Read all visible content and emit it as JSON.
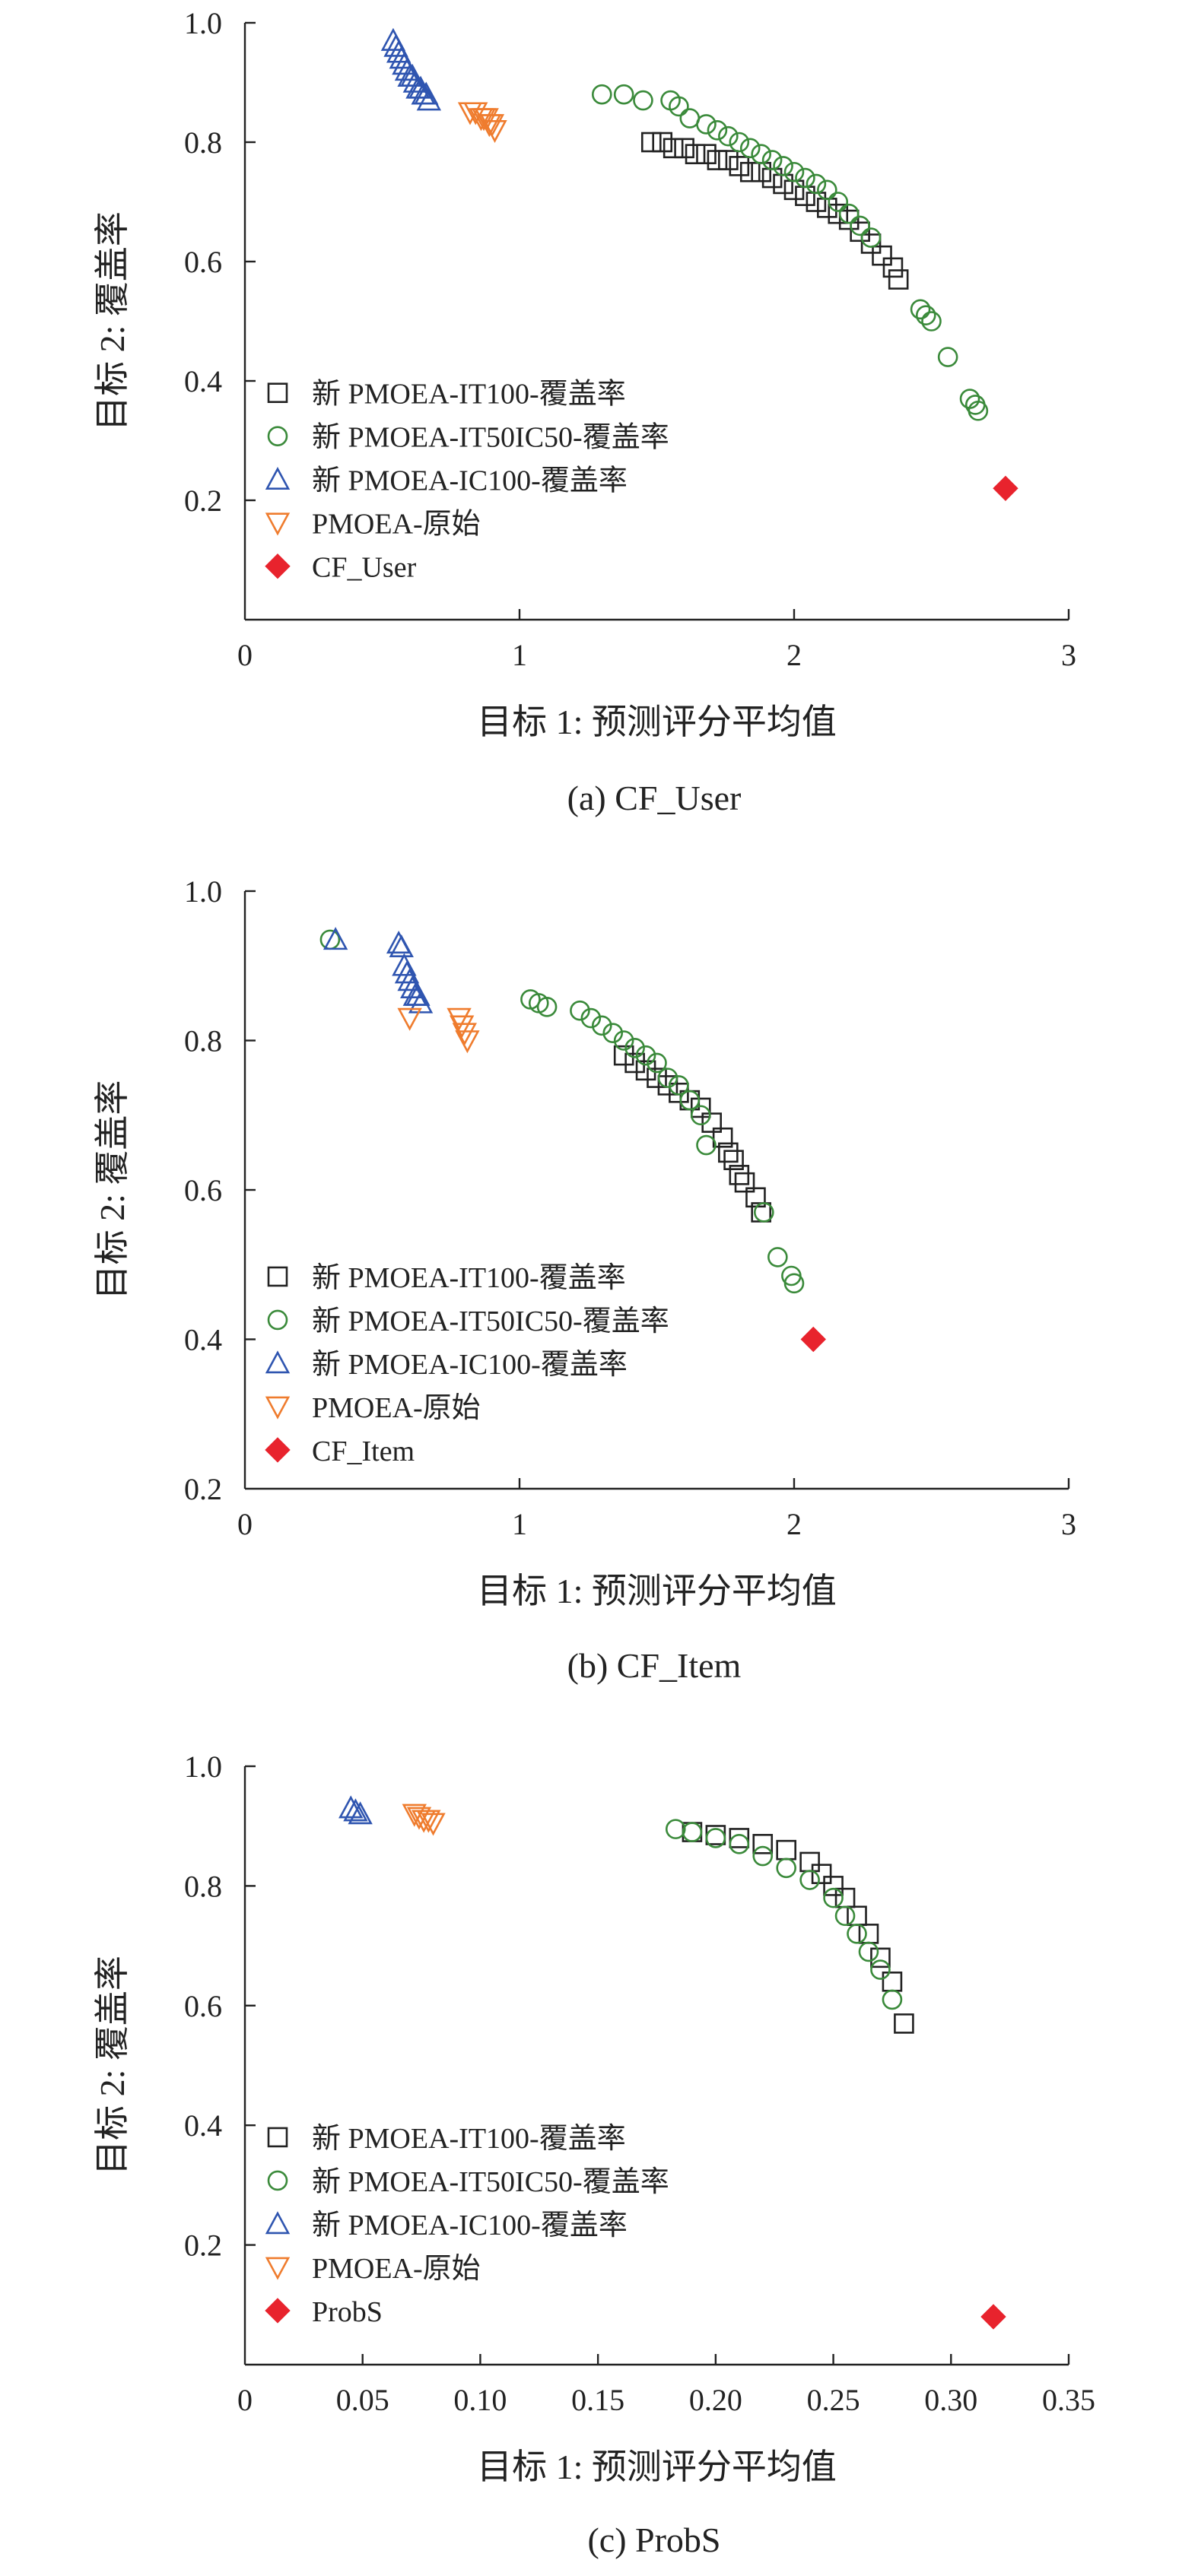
{
  "colors": {
    "it100": "#222222",
    "it50ic50": "#3a8a3a",
    "ic100": "#2f55b0",
    "original": "#ef7c2e",
    "baseline": "#e8232d"
  },
  "chart_data": [
    {
      "type": "scatter",
      "caption": "(a) CF_User",
      "xlabel": "目标 1: 预测评分平均值",
      "ylabel": "目标 2: 覆盖率",
      "xlim": [
        0,
        3
      ],
      "ylim": [
        0,
        1.0
      ],
      "x_ticks": [
        "0",
        "1",
        "2",
        "3"
      ],
      "y_ticks": [
        "0.2",
        "0.4",
        "0.6",
        "0.8",
        "1.0"
      ],
      "legend_position": "left",
      "series": [
        {
          "name": "新 PMOEA-IT100-覆盖率",
          "marker": "square",
          "color_key": "it100",
          "x": [
            1.48,
            1.52,
            1.56,
            1.6,
            1.64,
            1.68,
            1.72,
            1.76,
            1.8,
            1.84,
            1.88,
            1.92,
            1.96,
            2.0,
            2.04,
            2.08,
            2.12,
            2.16,
            2.2,
            2.24,
            2.28,
            2.32,
            2.36,
            2.38
          ],
          "y": [
            0.8,
            0.8,
            0.79,
            0.79,
            0.78,
            0.78,
            0.77,
            0.77,
            0.76,
            0.75,
            0.75,
            0.74,
            0.73,
            0.72,
            0.71,
            0.7,
            0.69,
            0.68,
            0.67,
            0.65,
            0.63,
            0.61,
            0.59,
            0.57
          ]
        },
        {
          "name": "新 PMOEA-IT50IC50-覆盖率",
          "marker": "circle",
          "color_key": "it50ic50",
          "x": [
            1.3,
            1.38,
            1.45,
            1.55,
            1.58,
            1.62,
            1.68,
            1.72,
            1.76,
            1.8,
            1.84,
            1.88,
            1.92,
            1.96,
            2.0,
            2.04,
            2.08,
            2.12,
            2.16,
            2.2,
            2.24,
            2.28,
            2.46,
            2.48,
            2.5,
            2.56,
            2.64,
            2.66,
            2.67
          ],
          "y": [
            0.88,
            0.88,
            0.87,
            0.87,
            0.86,
            0.84,
            0.83,
            0.82,
            0.81,
            0.8,
            0.79,
            0.78,
            0.77,
            0.76,
            0.75,
            0.74,
            0.73,
            0.72,
            0.7,
            0.68,
            0.66,
            0.64,
            0.52,
            0.51,
            0.5,
            0.44,
            0.37,
            0.36,
            0.35
          ]
        },
        {
          "name": "新 PMOEA-IC100-覆盖率",
          "marker": "triangle-up",
          "color_key": "ic100",
          "x": [
            0.54,
            0.55,
            0.56,
            0.57,
            0.58,
            0.59,
            0.6,
            0.61,
            0.62,
            0.63,
            0.64,
            0.65,
            0.66,
            0.67
          ],
          "y": [
            0.97,
            0.96,
            0.95,
            0.94,
            0.93,
            0.92,
            0.91,
            0.91,
            0.9,
            0.89,
            0.89,
            0.88,
            0.88,
            0.87
          ]
        },
        {
          "name": "PMOEA-原始",
          "marker": "triangle-down",
          "color_key": "original",
          "x": [
            0.82,
            0.84,
            0.86,
            0.87,
            0.88,
            0.89,
            0.9,
            0.91
          ],
          "y": [
            0.85,
            0.85,
            0.84,
            0.84,
            0.84,
            0.83,
            0.83,
            0.82
          ]
        },
        {
          "name": "CF_User",
          "marker": "diamond",
          "color_key": "baseline",
          "x": [
            2.77
          ],
          "y": [
            0.22
          ]
        }
      ]
    },
    {
      "type": "scatter",
      "caption": "(b) CF_Item",
      "xlabel": "目标 1: 预测评分平均值",
      "ylabel": "目标 2: 覆盖率",
      "xlim": [
        0,
        3
      ],
      "ylim": [
        0.2,
        1.0
      ],
      "x_ticks": [
        "0",
        "1",
        "2",
        "3"
      ],
      "y_ticks": [
        "0.2",
        "0.4",
        "0.6",
        "0.8",
        "1.0"
      ],
      "legend_position": "left",
      "series": [
        {
          "name": "新 PMOEA-IT100-覆盖率",
          "marker": "square",
          "color_key": "it100",
          "x": [
            1.38,
            1.42,
            1.46,
            1.5,
            1.54,
            1.58,
            1.62,
            1.66,
            1.7,
            1.74,
            1.76,
            1.78,
            1.8,
            1.82,
            1.86,
            1.88
          ],
          "y": [
            0.78,
            0.77,
            0.76,
            0.75,
            0.74,
            0.73,
            0.72,
            0.71,
            0.69,
            0.67,
            0.65,
            0.64,
            0.62,
            0.61,
            0.59,
            0.57
          ]
        },
        {
          "name": "新 PMOEA-IT50IC50-覆盖率",
          "marker": "circle",
          "color_key": "it50ic50",
          "x": [
            0.31,
            1.04,
            1.07,
            1.1,
            1.22,
            1.26,
            1.3,
            1.34,
            1.38,
            1.42,
            1.46,
            1.5,
            1.54,
            1.58,
            1.62,
            1.66,
            1.68,
            1.89,
            1.94,
            1.99,
            2.0
          ],
          "y": [
            0.935,
            0.855,
            0.85,
            0.845,
            0.84,
            0.83,
            0.82,
            0.81,
            0.8,
            0.79,
            0.78,
            0.77,
            0.75,
            0.74,
            0.72,
            0.7,
            0.66,
            0.57,
            0.51,
            0.485,
            0.475
          ]
        },
        {
          "name": "新 PMOEA-IC100-覆盖率",
          "marker": "triangle-up",
          "color_key": "ic100",
          "x": [
            0.33,
            0.56,
            0.57,
            0.58,
            0.59,
            0.6,
            0.61,
            0.62,
            0.63,
            0.64
          ],
          "y": [
            0.935,
            0.93,
            0.925,
            0.9,
            0.89,
            0.88,
            0.87,
            0.86,
            0.86,
            0.85
          ]
        },
        {
          "name": "PMOEA-原始",
          "marker": "triangle-down",
          "color_key": "original",
          "x": [
            0.6,
            0.78,
            0.79,
            0.8,
            0.81
          ],
          "y": [
            0.83,
            0.83,
            0.82,
            0.81,
            0.8
          ]
        },
        {
          "name": "CF_Item",
          "marker": "diamond",
          "color_key": "baseline",
          "x": [
            2.07
          ],
          "y": [
            0.4
          ]
        }
      ]
    },
    {
      "type": "scatter",
      "caption": "(c) ProbS",
      "xlabel": "目标 1: 预测评分平均值",
      "ylabel": "目标 2: 覆盖率",
      "xlim": [
        0,
        0.35
      ],
      "ylim": [
        0,
        1.0
      ],
      "x_ticks": [
        "0",
        "0.05",
        "0.10",
        "0.15",
        "0.20",
        "0.25",
        "0.30",
        "0.35"
      ],
      "y_ticks": [
        "0.2",
        "0.4",
        "0.6",
        "0.8",
        "1.0"
      ],
      "legend_position": "left",
      "series": [
        {
          "name": "新 PMOEA-IT100-覆盖率",
          "marker": "square",
          "color_key": "it100",
          "x": [
            0.19,
            0.2,
            0.21,
            0.22,
            0.23,
            0.24,
            0.245,
            0.25,
            0.255,
            0.26,
            0.265,
            0.27,
            0.275,
            0.28
          ],
          "y": [
            0.89,
            0.885,
            0.88,
            0.87,
            0.86,
            0.84,
            0.82,
            0.8,
            0.78,
            0.75,
            0.72,
            0.68,
            0.64,
            0.57
          ]
        },
        {
          "name": "新 PMOEA-IT50IC50-覆盖率",
          "marker": "circle",
          "color_key": "it50ic50",
          "x": [
            0.183,
            0.19,
            0.2,
            0.21,
            0.22,
            0.23,
            0.24,
            0.25,
            0.255,
            0.26,
            0.265,
            0.27,
            0.275
          ],
          "y": [
            0.895,
            0.89,
            0.88,
            0.87,
            0.85,
            0.83,
            0.81,
            0.78,
            0.75,
            0.72,
            0.69,
            0.66,
            0.61
          ]
        },
        {
          "name": "新 PMOEA-IC100-覆盖率",
          "marker": "triangle-up",
          "color_key": "ic100",
          "x": [
            0.045,
            0.047,
            0.049
          ],
          "y": [
            0.93,
            0.925,
            0.92
          ]
        },
        {
          "name": "PMOEA-原始",
          "marker": "triangle-down",
          "color_key": "original",
          "x": [
            0.072,
            0.074,
            0.076,
            0.078,
            0.08
          ],
          "y": [
            0.92,
            0.915,
            0.91,
            0.91,
            0.905
          ]
        },
        {
          "name": "ProbS",
          "marker": "diamond",
          "color_key": "baseline",
          "x": [
            0.318
          ],
          "y": [
            0.08
          ]
        }
      ]
    }
  ]
}
